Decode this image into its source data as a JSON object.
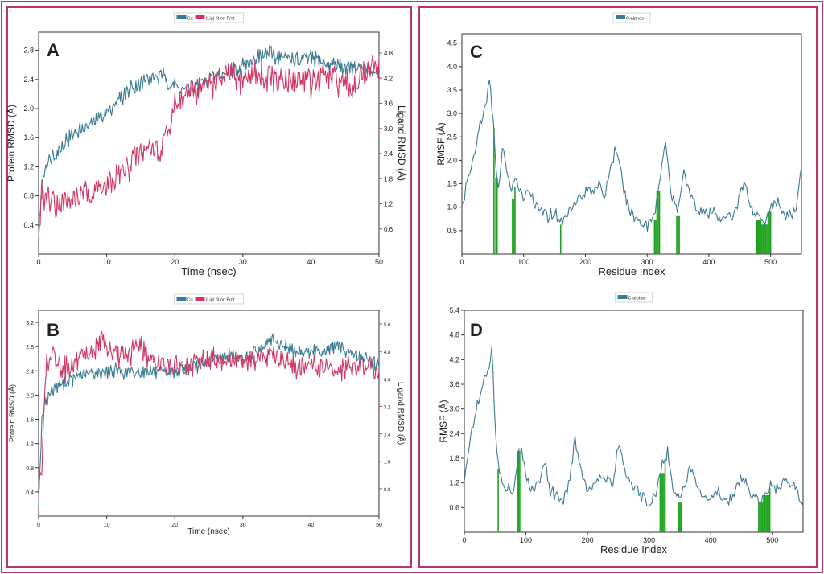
{
  "colors": {
    "protein": "#3b7a93",
    "ligand": "#d23764",
    "rmsf": "#3b7a93",
    "contact": "#1fa31f",
    "border": "#c0336a"
  },
  "chart_data": [
    {
      "type": "line",
      "panel_label": "A",
      "legend": {
        "entries": [
          "Cα",
          "(Lig) fit on Prot"
        ],
        "placement": "top-center"
      },
      "xlabel": "Time (nsec)",
      "ylabel": "Protein RMSD (Å)",
      "y2label": "Ligand RMSD (Å)",
      "xlim": [
        0,
        50
      ],
      "ylim": [
        0,
        3.05
      ],
      "y2lim": [
        0,
        5.3
      ],
      "xticks": [
        "0",
        "10",
        "20",
        "30",
        "40",
        "50"
      ],
      "yticks": [
        "0.4",
        "0.8",
        "1.2",
        "1.6",
        "2.0",
        "2.4",
        "2.8"
      ],
      "y2ticks": [
        "0.6",
        "1.2",
        "1.8",
        "2.4",
        "3.0",
        "3.6",
        "4.2",
        "4.8"
      ],
      "series": [
        {
          "name": "Protein Cα RMSD",
          "axis": "left",
          "color": "#3b7a93",
          "x": [
            0,
            0.5,
            1,
            2,
            4,
            6,
            8,
            10,
            12,
            14,
            16,
            18,
            20,
            22,
            24,
            26,
            28,
            30,
            32,
            34,
            36,
            38,
            40,
            42,
            44,
            46,
            48,
            50
          ],
          "values": [
            0.3,
            1.0,
            1.25,
            1.35,
            1.55,
            1.7,
            1.8,
            1.95,
            2.15,
            2.3,
            2.4,
            2.45,
            2.3,
            2.25,
            2.35,
            2.45,
            2.5,
            2.6,
            2.7,
            2.75,
            2.7,
            2.65,
            2.7,
            2.6,
            2.6,
            2.55,
            2.55,
            2.5
          ]
        },
        {
          "name": "Ligand RMSD",
          "axis": "right",
          "color": "#d23764",
          "x": [
            0,
            0.5,
            1,
            2,
            4,
            6,
            8,
            10,
            12,
            14,
            15,
            16,
            18,
            20,
            22,
            24,
            26,
            28,
            30,
            32,
            34,
            36,
            38,
            40,
            42,
            44,
            46,
            48,
            50
          ],
          "values": [
            0.1,
            1.5,
            1.4,
            1.3,
            1.2,
            1.4,
            1.5,
            1.6,
            1.9,
            2.2,
            2.4,
            2.6,
            2.4,
            3.6,
            3.8,
            4.0,
            4.1,
            4.2,
            4.2,
            4.3,
            4.2,
            4.1,
            4.2,
            4.1,
            4.2,
            4.1,
            4.0,
            4.3,
            4.5
          ]
        }
      ]
    },
    {
      "type": "line",
      "panel_label": "B",
      "legend": {
        "entries": [
          "Cα",
          "(Lig) fit on Prot"
        ],
        "placement": "top-center"
      },
      "xlabel": "Time (nsec)",
      "ylabel": "Protein RMSD (Å)",
      "y2label": "Ligand RMSD (Å)",
      "xlim": [
        0,
        50
      ],
      "ylim": [
        0,
        3.4
      ],
      "y2lim": [
        0,
        6.0
      ],
      "xticks": [
        "0",
        "10",
        "20",
        "30",
        "40",
        "50"
      ],
      "yticks": [
        "0.4",
        "0.8",
        "1.2",
        "1.6",
        "2.0",
        "2.4",
        "2.8",
        "3.2"
      ],
      "y2ticks": [
        "0.8",
        "1.6",
        "2.4",
        "3.2",
        "4.0",
        "4.8",
        "5.6"
      ],
      "series": [
        {
          "name": "Protein Cα RMSD",
          "axis": "left",
          "color": "#3b7a93",
          "x": [
            0,
            0.5,
            1,
            2,
            4,
            6,
            8,
            10,
            12,
            14,
            16,
            18,
            20,
            22,
            24,
            26,
            28,
            30,
            32,
            34,
            36,
            38,
            40,
            42,
            44,
            46,
            48,
            50
          ],
          "values": [
            0.3,
            1.6,
            1.9,
            2.1,
            2.2,
            2.3,
            2.35,
            2.4,
            2.4,
            2.35,
            2.4,
            2.35,
            2.4,
            2.45,
            2.5,
            2.6,
            2.65,
            2.6,
            2.7,
            2.9,
            2.8,
            2.75,
            2.7,
            2.75,
            2.8,
            2.7,
            2.6,
            2.5
          ]
        },
        {
          "name": "Ligand RMSD",
          "axis": "right",
          "color": "#d23764",
          "x": [
            0,
            0.5,
            1,
            2,
            4,
            6,
            8,
            9,
            10,
            12,
            14,
            15,
            16,
            18,
            20,
            22,
            24,
            26,
            28,
            30,
            32,
            34,
            36,
            38,
            40,
            42,
            44,
            46,
            48,
            50
          ],
          "values": [
            0.8,
            1.4,
            4.4,
            4.6,
            4.3,
            4.5,
            4.7,
            5.2,
            4.9,
            4.6,
            4.8,
            5.1,
            4.6,
            4.4,
            4.4,
            4.3,
            4.5,
            4.6,
            4.5,
            4.6,
            4.5,
            4.8,
            4.5,
            4.3,
            4.4,
            4.3,
            4.2,
            4.4,
            4.4,
            4.2
          ]
        }
      ]
    },
    {
      "type": "line",
      "panel_label": "C",
      "legend": {
        "entries": [
          "C-alphas"
        ],
        "placement": "top-center"
      },
      "xlabel": "Residue Index",
      "ylabel": "RMSF (Å)",
      "xlim": [
        0,
        550
      ],
      "ylim": [
        0,
        4.7
      ],
      "xticks": [
        "0",
        "100",
        "200",
        "300",
        "400",
        "500"
      ],
      "yticks": [
        "0.5",
        "1.0",
        "1.5",
        "2.0",
        "2.5",
        "3.0",
        "3.5",
        "4.0",
        "4.5"
      ],
      "series": [
        {
          "name": "C-alphas",
          "color": "#3b7a93",
          "x": [
            0,
            10,
            20,
            30,
            40,
            45,
            50,
            55,
            60,
            65,
            70,
            80,
            90,
            100,
            110,
            120,
            130,
            140,
            150,
            160,
            170,
            180,
            190,
            200,
            210,
            220,
            230,
            240,
            250,
            260,
            270,
            280,
            290,
            300,
            310,
            320,
            330,
            340,
            350,
            360,
            370,
            380,
            390,
            400,
            410,
            420,
            430,
            440,
            450,
            460,
            470,
            480,
            490,
            500,
            510,
            520,
            530,
            540,
            550
          ],
          "values": [
            1.0,
            1.6,
            2.1,
            2.8,
            3.2,
            3.8,
            3.0,
            1.8,
            1.3,
            2.3,
            2.0,
            1.3,
            1.6,
            1.2,
            1.4,
            1.0,
            0.9,
            0.8,
            0.9,
            0.7,
            0.8,
            1.1,
            1.2,
            1.3,
            1.4,
            1.5,
            1.2,
            1.8,
            2.3,
            1.5,
            1.0,
            0.8,
            0.7,
            0.6,
            0.8,
            1.5,
            2.4,
            1.2,
            0.9,
            1.8,
            1.3,
            1.0,
            0.9,
            0.8,
            0.9,
            0.7,
            0.8,
            0.8,
            1.3,
            1.5,
            0.9,
            0.8,
            0.7,
            1.0,
            1.1,
            0.9,
            0.8,
            0.9,
            1.9
          ]
        }
      ],
      "contacts": [
        52,
        55,
        57,
        82,
        84,
        86,
        160,
        312,
        314,
        316,
        318,
        320,
        348,
        350,
        352,
        478,
        480,
        482,
        484,
        486,
        488,
        490,
        492,
        494,
        496,
        498,
        500
      ]
    },
    {
      "type": "line",
      "panel_label": "D",
      "legend": {
        "entries": [
          "C-alphas"
        ],
        "placement": "top-center"
      },
      "xlabel": "Residue Index",
      "ylabel": "RMSF (Å)",
      "xlim": [
        0,
        550
      ],
      "ylim": [
        0,
        5.4
      ],
      "xticks": [
        "0",
        "100",
        "200",
        "300",
        "400",
        "500"
      ],
      "yticks": [
        "0.6",
        "1.2",
        "1.8",
        "2.4",
        "3.0",
        "3.6",
        "4.2",
        "4.8",
        "5.4"
      ],
      "series": [
        {
          "name": "C-alphas",
          "color": "#3b7a93",
          "x": [
            0,
            10,
            20,
            30,
            40,
            45,
            50,
            55,
            60,
            65,
            70,
            80,
            90,
            100,
            110,
            120,
            130,
            140,
            150,
            160,
            170,
            180,
            190,
            200,
            210,
            220,
            230,
            240,
            250,
            260,
            270,
            280,
            290,
            300,
            310,
            320,
            330,
            340,
            350,
            360,
            370,
            380,
            390,
            400,
            410,
            420,
            430,
            440,
            450,
            460,
            470,
            480,
            490,
            500,
            510,
            520,
            530,
            540,
            550
          ],
          "values": [
            1.2,
            2.4,
            3.0,
            3.6,
            4.0,
            4.6,
            2.5,
            1.7,
            1.2,
            1.0,
            1.1,
            1.0,
            2.2,
            1.4,
            1.0,
            1.2,
            1.8,
            1.0,
            0.9,
            0.8,
            1.2,
            2.3,
            1.5,
            1.0,
            1.1,
            1.3,
            1.4,
            1.1,
            2.2,
            1.6,
            1.2,
            1.0,
            0.8,
            0.7,
            0.9,
            1.6,
            1.9,
            1.1,
            0.8,
            1.3,
            1.6,
            1.0,
            0.9,
            0.8,
            1.0,
            0.9,
            0.8,
            1.0,
            1.3,
            1.1,
            0.9,
            0.8,
            1.0,
            1.2,
            1.0,
            1.3,
            1.2,
            1.1,
            0.6
          ]
        }
      ],
      "contacts": [
        55,
        86,
        88,
        90,
        318,
        320,
        322,
        324,
        326,
        348,
        350,
        352,
        478,
        480,
        482,
        484,
        486,
        488,
        490,
        492,
        494,
        496
      ]
    }
  ]
}
